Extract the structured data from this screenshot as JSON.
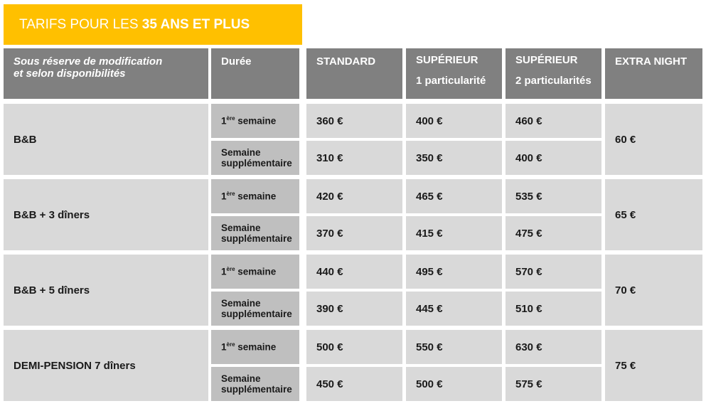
{
  "title": {
    "prefix": "TARIFS POUR LES ",
    "highlight": "35 ANS ET PLUS"
  },
  "header": {
    "note": [
      "Sous réserve de modification",
      "et selon disponibilités"
    ],
    "duration": "Durée",
    "standard": "STANDARD",
    "superior1": [
      "SUPÉRIEUR",
      "1 particularité"
    ],
    "superior2": [
      "SUPÉRIEUR",
      "2 particularités"
    ],
    "extra": "EXTRA NIGHT"
  },
  "groups": [
    {
      "label": "B&B",
      "extra": "60 €",
      "rows": [
        {
          "duration": {
            "num": "1",
            "sup": "ère",
            "rest": " semaine"
          },
          "prices": [
            "360 €",
            "400 €",
            "460 €"
          ]
        },
        {
          "duration": {
            "lines": [
              "Semaine",
              "supplémentaire"
            ]
          },
          "prices": [
            "310 €",
            "350 €",
            "400 €"
          ]
        }
      ]
    },
    {
      "label": "B&B + 3 dîners",
      "extra": "65 €",
      "rows": [
        {
          "duration": {
            "num": "1",
            "sup": "ère",
            "rest": " semaine"
          },
          "prices": [
            "420 €",
            "465 €",
            "535 €"
          ]
        },
        {
          "duration": {
            "lines": [
              "Semaine",
              "supplémentaire"
            ]
          },
          "prices": [
            "370 €",
            "415 €",
            "475 €"
          ]
        }
      ]
    },
    {
      "label": "B&B + 5 dîners",
      "extra": "70 €",
      "rows": [
        {
          "duration": {
            "num": "1",
            "sup": "ère",
            "rest": " semaine"
          },
          "prices": [
            "440 €",
            "495 €",
            "570 €"
          ]
        },
        {
          "duration": {
            "lines": [
              "Semaine",
              "supplémentaire"
            ]
          },
          "prices": [
            "390 €",
            "445 €",
            "510 €"
          ]
        }
      ]
    },
    {
      "label": "DEMI-PENSION 7 dîners",
      "extra": "75 €",
      "rows": [
        {
          "duration": {
            "num": "1",
            "sup": "ère",
            "rest": " semaine"
          },
          "prices": [
            "500 €",
            "550 €",
            "630 €"
          ]
        },
        {
          "duration": {
            "lines": [
              "Semaine",
              "supplémentaire"
            ]
          },
          "prices": [
            "450 €",
            "500 €",
            "575 €"
          ]
        }
      ]
    }
  ]
}
